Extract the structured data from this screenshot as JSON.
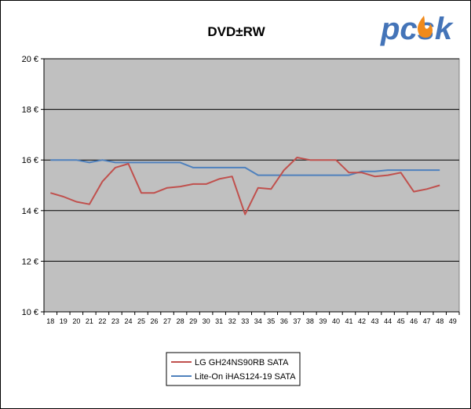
{
  "colors": {
    "plot_bg": "#C0C0C0",
    "grid": "#808080",
    "series_lg": "#C0504D",
    "series_liteon": "#4F81BD",
    "logo_blue": "#4474B8",
    "logo_flame": "#F08A1C"
  },
  "logo": {
    "text": "pcsk"
  },
  "chart_data": {
    "type": "line",
    "title": "DVD±RW",
    "xlabel": "",
    "ylabel": "",
    "ylim": [
      10,
      20
    ],
    "y_ticks": [
      "10 €",
      "12 €",
      "14 €",
      "16 €",
      "18 €",
      "20 €"
    ],
    "x": [
      18,
      19,
      20,
      21,
      22,
      23,
      24,
      25,
      26,
      27,
      28,
      29,
      30,
      31,
      32,
      33,
      34,
      35,
      36,
      37,
      38,
      39,
      40,
      41,
      42,
      43,
      44,
      45,
      46,
      47,
      48,
      49
    ],
    "grid": true,
    "legend_position": "bottom",
    "series": [
      {
        "name": "LG GH24NS90RB SATA",
        "values": [
          14.7,
          14.55,
          14.35,
          14.25,
          15.15,
          15.7,
          15.85,
          14.7,
          14.7,
          14.9,
          14.95,
          15.05,
          15.05,
          15.25,
          15.35,
          13.85,
          14.9,
          14.85,
          15.6,
          16.1,
          16.0,
          16.0,
          16.0,
          15.5,
          15.5,
          15.35,
          15.4,
          15.5,
          14.75,
          14.85,
          15.0,
          null
        ]
      },
      {
        "name": "Lite-On iHAS124-19 SATA",
        "values": [
          16.0,
          16.0,
          16.0,
          15.9,
          16.0,
          15.9,
          15.9,
          15.9,
          15.9,
          15.9,
          15.9,
          15.7,
          15.7,
          15.7,
          15.7,
          15.7,
          15.4,
          15.4,
          15.4,
          15.4,
          15.4,
          15.4,
          15.4,
          15.4,
          15.55,
          15.55,
          15.6,
          15.6,
          15.6,
          15.6,
          15.6,
          null
        ]
      }
    ]
  }
}
